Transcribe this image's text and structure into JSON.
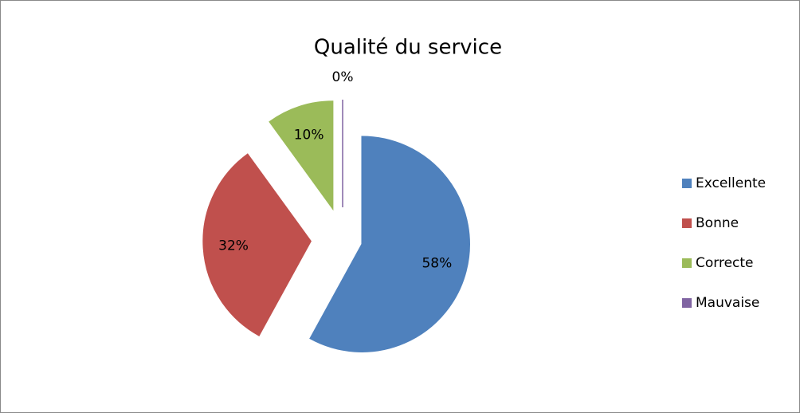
{
  "chart_data": {
    "type": "pie",
    "title": "Qualité du service",
    "categories": [
      "Excellente",
      "Bonne",
      "Correcte",
      "Mauvaise"
    ],
    "values": [
      58,
      32,
      10,
      0
    ],
    "value_labels": [
      "58%",
      "32%",
      "10%",
      "0%"
    ],
    "colors": [
      "#4f81bd",
      "#c0504d",
      "#9bbb59",
      "#8064a2"
    ],
    "legend": "right"
  }
}
